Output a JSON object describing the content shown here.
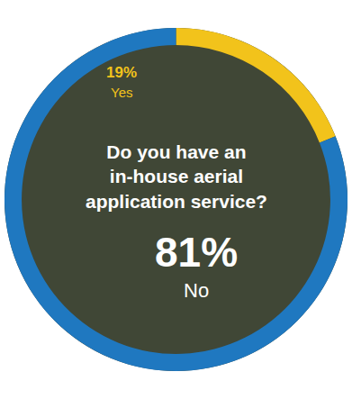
{
  "chart_data": {
    "type": "pie",
    "title": "Do you have an in-house aerial application service?",
    "categories": [
      "Yes",
      "No"
    ],
    "values": [
      19,
      81
    ],
    "value_labels": [
      "19%",
      "81%"
    ],
    "colors": [
      "#f2c31b",
      "#1f78c0"
    ],
    "data_labels": true
  }
}
